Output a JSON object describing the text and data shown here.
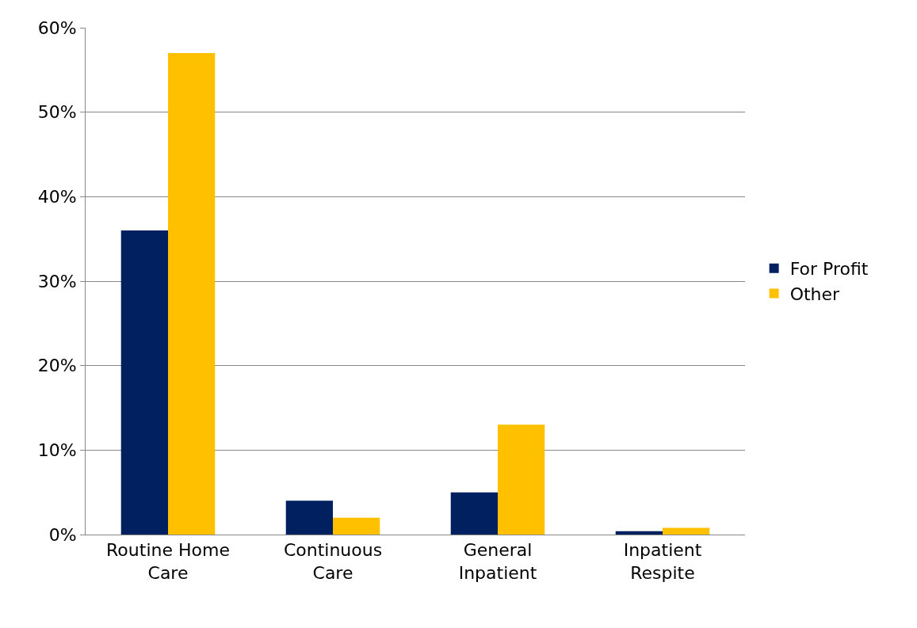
{
  "chart_data": {
    "type": "bar",
    "categories": [
      "Routine Home Care",
      "Continuous Care",
      "General Inpatient",
      "Inpatient Respite"
    ],
    "series": [
      {
        "name": "For Profit",
        "color": "#002060",
        "values": [
          36,
          4,
          5,
          0.4
        ]
      },
      {
        "name": "Other",
        "color": "#ffc000",
        "values": [
          57,
          2,
          13,
          0.8
        ]
      }
    ],
    "ylim": [
      0,
      60
    ],
    "yticks": [
      {
        "value": 0,
        "label": "0%"
      },
      {
        "value": 10,
        "label": "10%"
      },
      {
        "value": 20,
        "label": "20%"
      },
      {
        "value": 30,
        "label": "30%"
      },
      {
        "value": 40,
        "label": "40%"
      },
      {
        "value": 50,
        "label": "50%"
      },
      {
        "value": 60,
        "label": "60%"
      }
    ],
    "grid": "y",
    "legend": "right"
  }
}
